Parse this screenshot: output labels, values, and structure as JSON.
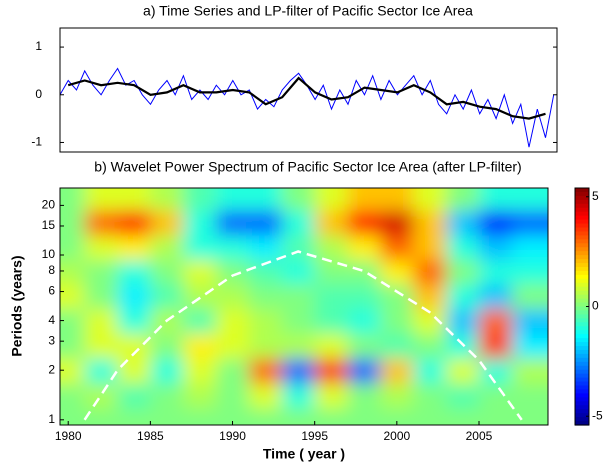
{
  "chart_data": [
    {
      "type": "line",
      "title": "a) Time Series and LP-filter of Pacific  Sector Ice Area",
      "xlim": [
        1979.5,
        2009.7
      ],
      "ylim": [
        -1.2,
        1.4
      ],
      "yticks": [
        -1,
        0,
        1
      ],
      "series": [
        {
          "color": "#0000ff",
          "width": 1,
          "x": [
            1979.5,
            1980,
            1980.5,
            1981,
            1981.5,
            1982,
            1982.5,
            1983,
            1983.5,
            1984,
            1984.5,
            1985,
            1985.5,
            1986,
            1986.5,
            1987,
            1987.5,
            1988,
            1988.5,
            1989,
            1989.5,
            1990,
            1990.5,
            1991,
            1991.5,
            1992,
            1992.5,
            1993,
            1993.5,
            1994,
            1994.5,
            1995,
            1995.5,
            1996,
            1996.5,
            1997,
            1997.5,
            1998,
            1998.5,
            1999,
            1999.5,
            2000,
            2000.5,
            2001,
            2001.5,
            2002,
            2002.5,
            2003,
            2003.5,
            2004,
            2004.5,
            2005,
            2005.5,
            2006,
            2006.5,
            2007,
            2007.5,
            2008,
            2008.5,
            2009,
            2009.5
          ],
          "values": [
            0.0,
            0.3,
            0.1,
            0.5,
            0.2,
            0.0,
            0.3,
            0.55,
            0.2,
            0.3,
            0.0,
            -0.2,
            0.1,
            0.3,
            0.0,
            0.4,
            -0.1,
            0.1,
            -0.1,
            0.2,
            0.0,
            0.3,
            0.0,
            0.1,
            -0.3,
            -0.1,
            -0.25,
            0.1,
            0.3,
            0.45,
            0.2,
            -0.1,
            0.2,
            -0.3,
            0.1,
            -0.2,
            0.3,
            0.0,
            0.4,
            -0.1,
            0.3,
            0.0,
            0.2,
            0.4,
            0.0,
            0.3,
            -0.2,
            -0.4,
            0.0,
            -0.3,
            0.1,
            -0.4,
            -0.1,
            -0.5,
            0.0,
            -0.6,
            -0.2,
            -1.1,
            -0.3,
            -0.9,
            0.0
          ]
        },
        {
          "color": "#000000",
          "width": 2.2,
          "x": [
            1980,
            1981,
            1982,
            1983,
            1984,
            1985,
            1986,
            1987,
            1988,
            1989,
            1990,
            1991,
            1992,
            1993,
            1994,
            1995,
            1996,
            1997,
            1998,
            1999,
            2000,
            2001,
            2002,
            2003,
            2004,
            2005,
            2006,
            2007,
            2008,
            2009
          ],
          "values": [
            0.2,
            0.3,
            0.2,
            0.25,
            0.2,
            0.0,
            0.05,
            0.2,
            0.05,
            0.05,
            0.1,
            0.05,
            -0.2,
            -0.05,
            0.35,
            0.05,
            -0.1,
            -0.05,
            0.15,
            0.1,
            0.05,
            0.2,
            0.05,
            -0.2,
            -0.15,
            -0.25,
            -0.3,
            -0.45,
            -0.5,
            -0.4
          ]
        }
      ]
    },
    {
      "type": "heatmap",
      "title": "b) Wavelet Power Spectrum of Pacific  Sector Ice Area (after LP-filter)",
      "x_label": "Time ( year )",
      "y_label": "Periods (years)",
      "xlim": [
        1979.5,
        2009.2
      ],
      "xticks": [
        1980,
        1985,
        1990,
        1995,
        2000,
        2005
      ],
      "ylim": [
        0.93,
        25.5
      ],
      "log_y": true,
      "yticks": [
        1,
        2,
        3,
        4,
        6,
        8,
        10,
        15,
        20
      ],
      "clim": [
        -5.4,
        5.4
      ],
      "cticks": [
        -5,
        0,
        5
      ],
      "x": [
        1980,
        1982,
        1984,
        1986,
        1988,
        1990,
        1992,
        1994,
        1996,
        1998,
        2000,
        2002,
        2004,
        2006,
        2008
      ],
      "y": [
        1,
        1.4,
        2,
        2.8,
        4,
        5.6,
        8,
        11,
        16,
        22
      ],
      "values": [
        [
          0,
          0,
          0,
          0,
          0,
          0,
          0,
          0,
          0,
          0,
          0,
          0,
          0,
          0,
          0
        ],
        [
          0,
          0.5,
          -0.5,
          0,
          0.5,
          0,
          1,
          -1,
          1,
          0,
          0.5,
          0,
          -0.5,
          0,
          0
        ],
        [
          1,
          -1,
          1,
          -1,
          1,
          0,
          3,
          -3,
          3.5,
          -3,
          2,
          -1,
          1,
          -1,
          0.5
        ],
        [
          0,
          1,
          1,
          0,
          1.5,
          1,
          0.5,
          0.5,
          1,
          0,
          -0.5,
          0,
          -1,
          3.5,
          -1.5
        ],
        [
          0,
          1,
          -1,
          0.5,
          -0.5,
          1,
          0.5,
          0,
          -0.5,
          -1,
          0,
          1,
          -2,
          3,
          -2
        ],
        [
          1,
          0,
          -1.5,
          -0.5,
          0.5,
          0.5,
          0,
          0,
          -0.5,
          -0.5,
          0,
          2,
          -1,
          -2,
          0
        ],
        [
          0.5,
          0,
          -1,
          0,
          1,
          0,
          -0.5,
          -1,
          0,
          0,
          1.5,
          3,
          0,
          -1,
          -1
        ],
        [
          0,
          1,
          1.5,
          0.5,
          -1,
          -1,
          -1.5,
          -0.5,
          0.5,
          1.5,
          3,
          2,
          -1,
          -2,
          -1.5
        ],
        [
          0,
          3,
          4,
          2,
          -1,
          -3,
          -3,
          -1,
          2,
          4,
          4.5,
          2,
          -2,
          -4,
          -3
        ],
        [
          0,
          1,
          1,
          0.5,
          -0.5,
          -1,
          -1,
          0,
          1,
          2,
          2,
          1,
          0,
          -1,
          -1
        ]
      ],
      "cone_of_influence": {
        "color": "#ffffff",
        "x": [
          1981,
          1983,
          1986,
          1990,
          1994,
          1998,
          2002,
          2005,
          2007.6
        ],
        "values": [
          1,
          2,
          4,
          7.5,
          10.5,
          8,
          4.5,
          2.3,
          1
        ]
      }
    }
  ]
}
